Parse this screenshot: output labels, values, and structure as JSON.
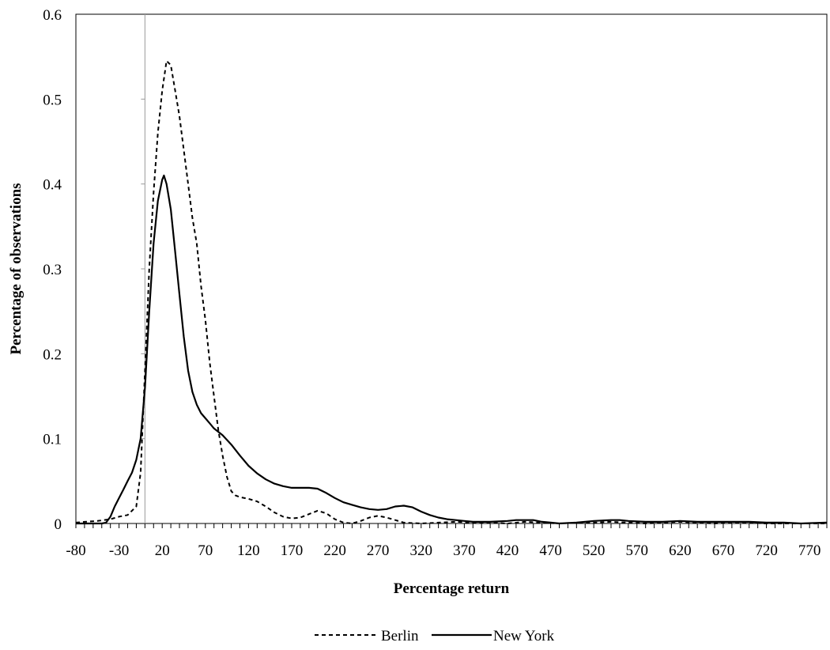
{
  "chart_data": {
    "type": "line",
    "title": "",
    "xlabel": "Percentage return",
    "ylabel": "Percentage of observations",
    "xlim": [
      -80,
      790
    ],
    "ylim": [
      0,
      0.6
    ],
    "x_ticks": [
      -80,
      -30,
      20,
      70,
      120,
      170,
      220,
      270,
      320,
      370,
      420,
      470,
      520,
      570,
      620,
      670,
      720,
      770
    ],
    "y_ticks": [
      0,
      0.1,
      0.2,
      0.3,
      0.4,
      0.5,
      0.6
    ],
    "y_tick_labels": [
      "0",
      "0.1",
      "0.2",
      "0.3",
      "0.4",
      "0.5",
      "0.6"
    ],
    "reference_line_x": 0,
    "grid": false,
    "legend_position": "bottom",
    "series": [
      {
        "name": "Berlin",
        "style": "dashed",
        "color": "#000000",
        "points": [
          [
            -80,
            0.001
          ],
          [
            -70,
            0.002
          ],
          [
            -55,
            0.003
          ],
          [
            -40,
            0.005
          ],
          [
            -30,
            0.008
          ],
          [
            -20,
            0.01
          ],
          [
            -10,
            0.02
          ],
          [
            -5,
            0.06
          ],
          [
            0,
            0.18
          ],
          [
            5,
            0.3
          ],
          [
            10,
            0.39
          ],
          [
            15,
            0.46
          ],
          [
            20,
            0.51
          ],
          [
            25,
            0.545
          ],
          [
            30,
            0.54
          ],
          [
            35,
            0.51
          ],
          [
            40,
            0.48
          ],
          [
            45,
            0.44
          ],
          [
            50,
            0.4
          ],
          [
            55,
            0.36
          ],
          [
            60,
            0.33
          ],
          [
            65,
            0.28
          ],
          [
            70,
            0.24
          ],
          [
            75,
            0.19
          ],
          [
            80,
            0.15
          ],
          [
            85,
            0.11
          ],
          [
            90,
            0.08
          ],
          [
            95,
            0.055
          ],
          [
            100,
            0.038
          ],
          [
            105,
            0.033
          ],
          [
            110,
            0.031
          ],
          [
            120,
            0.029
          ],
          [
            130,
            0.026
          ],
          [
            140,
            0.02
          ],
          [
            150,
            0.013
          ],
          [
            160,
            0.008
          ],
          [
            170,
            0.006
          ],
          [
            180,
            0.007
          ],
          [
            190,
            0.011
          ],
          [
            200,
            0.015
          ],
          [
            210,
            0.012
          ],
          [
            220,
            0.005
          ],
          [
            230,
            0.001
          ],
          [
            240,
            0.0
          ],
          [
            250,
            0.003
          ],
          [
            260,
            0.007
          ],
          [
            270,
            0.009
          ],
          [
            280,
            0.007
          ],
          [
            290,
            0.004
          ],
          [
            300,
            0.001
          ],
          [
            320,
            0.0
          ],
          [
            340,
            0.001
          ],
          [
            360,
            0.002
          ],
          [
            380,
            0.001
          ],
          [
            400,
            0.001
          ],
          [
            420,
            0.0
          ],
          [
            440,
            0.002
          ],
          [
            460,
            0.001
          ],
          [
            480,
            0.0
          ],
          [
            500,
            0.001
          ],
          [
            520,
            0.001
          ],
          [
            540,
            0.002
          ],
          [
            560,
            0.001
          ],
          [
            580,
            0.0
          ],
          [
            600,
            0.001
          ],
          [
            620,
            0.002
          ],
          [
            640,
            0.001
          ],
          [
            660,
            0.0
          ],
          [
            680,
            0.001
          ],
          [
            700,
            0.001
          ],
          [
            720,
            0.0
          ],
          [
            750,
            0.0
          ],
          [
            790,
            0.0
          ]
        ]
      },
      {
        "name": "New York",
        "style": "solid",
        "color": "#000000",
        "points": [
          [
            -80,
            0.0
          ],
          [
            -70,
            0.0
          ],
          [
            -60,
            0.0
          ],
          [
            -50,
            0.0
          ],
          [
            -45,
            0.001
          ],
          [
            -40,
            0.008
          ],
          [
            -35,
            0.02
          ],
          [
            -30,
            0.03
          ],
          [
            -25,
            0.04
          ],
          [
            -20,
            0.05
          ],
          [
            -15,
            0.06
          ],
          [
            -10,
            0.075
          ],
          [
            -5,
            0.1
          ],
          [
            0,
            0.16
          ],
          [
            5,
            0.25
          ],
          [
            10,
            0.33
          ],
          [
            15,
            0.38
          ],
          [
            20,
            0.405
          ],
          [
            22,
            0.41
          ],
          [
            25,
            0.4
          ],
          [
            30,
            0.37
          ],
          [
            35,
            0.32
          ],
          [
            40,
            0.27
          ],
          [
            45,
            0.22
          ],
          [
            50,
            0.18
          ],
          [
            55,
            0.155
          ],
          [
            60,
            0.14
          ],
          [
            65,
            0.13
          ],
          [
            70,
            0.124
          ],
          [
            75,
            0.118
          ],
          [
            80,
            0.112
          ],
          [
            90,
            0.104
          ],
          [
            100,
            0.093
          ],
          [
            110,
            0.08
          ],
          [
            120,
            0.068
          ],
          [
            130,
            0.059
          ],
          [
            140,
            0.052
          ],
          [
            150,
            0.047
          ],
          [
            160,
            0.044
          ],
          [
            170,
            0.042
          ],
          [
            180,
            0.042
          ],
          [
            190,
            0.042
          ],
          [
            200,
            0.041
          ],
          [
            210,
            0.036
          ],
          [
            220,
            0.03
          ],
          [
            230,
            0.025
          ],
          [
            240,
            0.022
          ],
          [
            250,
            0.019
          ],
          [
            260,
            0.017
          ],
          [
            270,
            0.016
          ],
          [
            280,
            0.017
          ],
          [
            290,
            0.02
          ],
          [
            300,
            0.021
          ],
          [
            310,
            0.019
          ],
          [
            320,
            0.014
          ],
          [
            330,
            0.01
          ],
          [
            340,
            0.007
          ],
          [
            350,
            0.005
          ],
          [
            360,
            0.004
          ],
          [
            370,
            0.003
          ],
          [
            380,
            0.002
          ],
          [
            400,
            0.002
          ],
          [
            420,
            0.003
          ],
          [
            430,
            0.004
          ],
          [
            440,
            0.004
          ],
          [
            450,
            0.004
          ],
          [
            460,
            0.002
          ],
          [
            470,
            0.001
          ],
          [
            480,
            0.0
          ],
          [
            500,
            0.001
          ],
          [
            520,
            0.003
          ],
          [
            540,
            0.004
          ],
          [
            550,
            0.004
          ],
          [
            560,
            0.003
          ],
          [
            580,
            0.002
          ],
          [
            600,
            0.002
          ],
          [
            620,
            0.003
          ],
          [
            640,
            0.002
          ],
          [
            660,
            0.002
          ],
          [
            680,
            0.002
          ],
          [
            700,
            0.002
          ],
          [
            720,
            0.001
          ],
          [
            740,
            0.001
          ],
          [
            760,
            0.0
          ],
          [
            790,
            0.001
          ]
        ]
      }
    ]
  }
}
